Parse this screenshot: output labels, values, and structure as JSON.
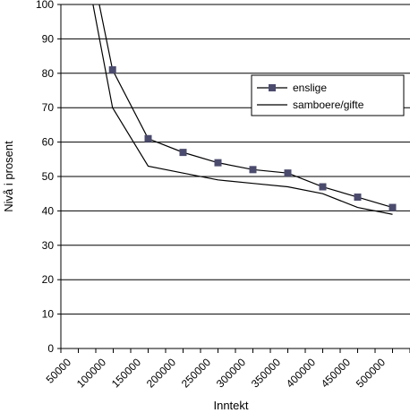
{
  "chart_data": {
    "type": "line",
    "xlabel": "Inntekt",
    "ylabel": "Nivå i prosent",
    "ylim": [
      0,
      100
    ],
    "yticks": [
      0,
      10,
      20,
      30,
      40,
      50,
      60,
      70,
      80,
      90,
      100
    ],
    "xlim": [
      50000,
      550000
    ],
    "xticks": [
      "50000",
      "100000",
      "150000",
      "200000",
      "250000",
      "300000",
      "350000",
      "400000",
      "450000",
      "500000"
    ],
    "grid": "horizontal",
    "legend_position": "right",
    "series": [
      {
        "name": "enslige",
        "marker": "square",
        "color": "#4b4b6e",
        "x": [
          105000,
          124000,
          175000,
          225000,
          275000,
          325000,
          375000,
          425000,
          475000,
          525000
        ],
        "y": [
          100,
          81,
          61,
          57,
          54,
          52,
          51,
          47,
          44,
          41
        ]
      },
      {
        "name": "samboere/gifte",
        "marker": "none",
        "color": "#000000",
        "x": [
          96000,
          124000,
          175000,
          225000,
          275000,
          325000,
          375000,
          425000,
          475000,
          525000
        ],
        "y": [
          100,
          70,
          53,
          51,
          49,
          48,
          47,
          45,
          41,
          39
        ]
      }
    ]
  }
}
